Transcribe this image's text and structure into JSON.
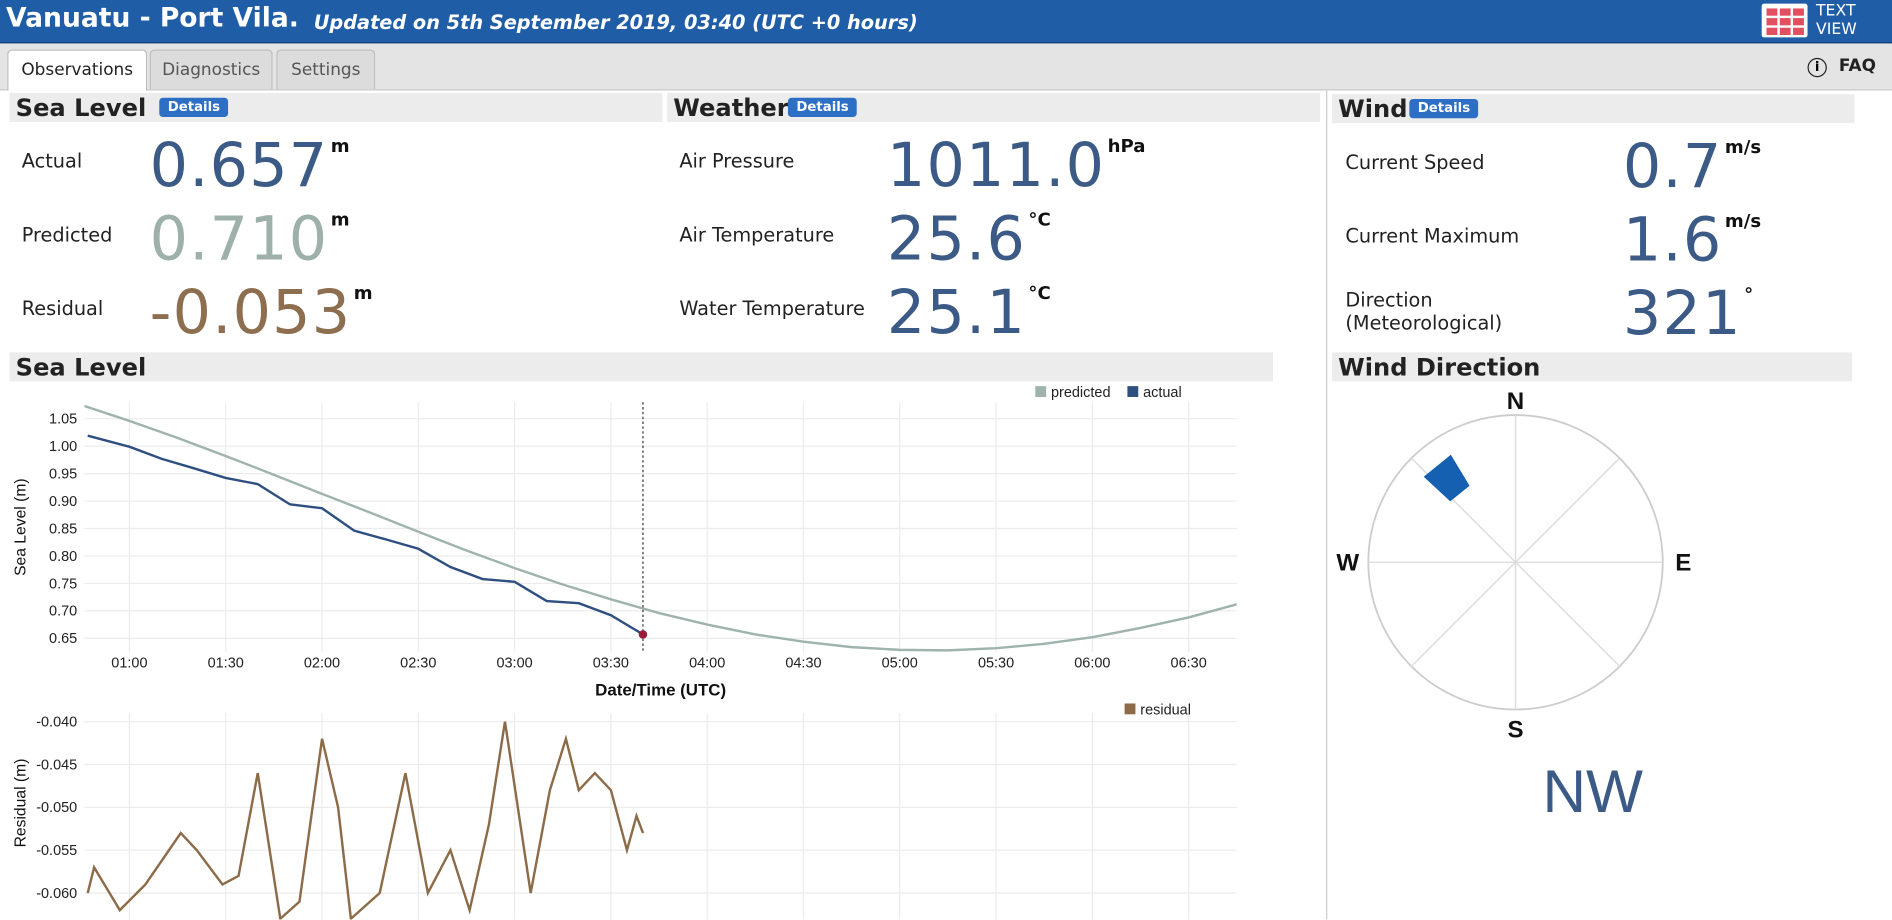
{
  "header": {
    "title": "Vanuatu - Port Vila.",
    "subtitle": "Updated on 5th September 2019, 03:40 (UTC +0 hours)",
    "text_view": "TEXT VIEW"
  },
  "tabs": [
    "Observations",
    "Diagnostics",
    "Settings"
  ],
  "faq": "FAQ",
  "panels": [
    {
      "title": "Sea Level",
      "details": "Details",
      "rows": [
        {
          "label": "Actual",
          "value": "0.657",
          "unit": "m",
          "color": "#3b5a86"
        },
        {
          "label": "Predicted",
          "value": "0.710",
          "unit": "m",
          "color": "#9db0aa"
        },
        {
          "label": "Residual",
          "value": "-0.053",
          "unit": "m",
          "color": "#8d6e4e"
        }
      ]
    },
    {
      "title": "Weather",
      "details": "Details",
      "rows": [
        {
          "label": "Air Pressure",
          "value": "1011.0",
          "unit": "hPa"
        },
        {
          "label": "Air Temperature",
          "value": "25.6",
          "unit": "°C"
        },
        {
          "label": "Water Temperature",
          "value": "25.1",
          "unit": "°C"
        }
      ]
    },
    {
      "title": "Wind",
      "details": "Details",
      "rows": [
        {
          "label": "Current Speed",
          "value": "0.7",
          "unit": "m/s"
        },
        {
          "label": "Current Maximum",
          "value": "1.6",
          "unit": "m/s"
        },
        {
          "label": "Direction (Meteorological)",
          "value": 321,
          "unit": "°"
        }
      ]
    }
  ],
  "sea_level_title": "Sea Level",
  "wind_direction": {
    "title": "Wind Direction",
    "labels": [
      "N",
      "E",
      "S",
      "W"
    ],
    "cardinal": "NW",
    "color": "#1560b0"
  },
  "chart_data": [
    {
      "type": "line",
      "y_label": "Sea Level (m)",
      "x_label": "Date/Time (UTC)",
      "xlim": [
        "00:46",
        "06:45"
      ],
      "ylim": [
        0.625,
        1.08
      ],
      "xticks": [
        "01:00",
        "01:30",
        "02:00",
        "02:30",
        "03:00",
        "03:30",
        "04:00",
        "04:30",
        "05:00",
        "05:30",
        "06:00",
        "06:30"
      ],
      "yticks": [
        0.65,
        {
          "value": 0.7,
          "label": "0.70"
        },
        0.75,
        {
          "value": 0.8,
          "label": "0.80"
        },
        0.85,
        {
          "value": 0.9,
          "label": "0.90"
        },
        0.95,
        {
          "value": 1,
          "label": "1.00"
        },
        1.05
      ],
      "grid": true,
      "end_marker": "#9b1b3b",
      "series": [
        {
          "name": "predicted",
          "color": "#9fb3ad",
          "x": [
            "00:45",
            "01:00",
            "01:15",
            "01:30",
            "01:45",
            "02:00",
            "02:15",
            "02:30",
            "02:45",
            "03:00",
            "03:15",
            "03:30",
            "03:45",
            "04:00",
            "04:15",
            "04:30",
            "04:45",
            "05:00",
            "05:15",
            "05:30",
            "05:45",
            "06:00",
            "06:15",
            "06:30",
            "06:45"
          ],
          "values": [
            1.075,
            1.046,
            1.015,
            0.982,
            0.948,
            0.913,
            0.879,
            0.844,
            0.81,
            0.778,
            0.748,
            0.721,
            0.696,
            0.675,
            0.657,
            0.644,
            0.634,
            0.629,
            0.628,
            0.632,
            0.64,
            0.652,
            0.669,
            0.688,
            0.712
          ]
        },
        {
          "name": "actual",
          "color": "#2f4f80",
          "x": [
            "00:47",
            "01:00",
            "01:10",
            "01:20",
            "01:30",
            "01:40",
            "01:50",
            "02:00",
            "02:10",
            "02:20",
            "02:30",
            "02:40",
            "02:50",
            "03:00",
            "03:10",
            "03:20",
            "03:30",
            "03:40"
          ],
          "values": [
            1.019,
            0.999,
            0.977,
            0.96,
            0.942,
            0.931,
            0.894,
            0.887,
            0.846,
            0.83,
            0.813,
            0.78,
            0.758,
            0.753,
            0.718,
            0.714,
            0.692,
            0.657
          ]
        }
      ]
    },
    {
      "type": "line",
      "y_label": "Residual (m)",
      "xlim": [
        "00:46",
        "06:45"
      ],
      "ylim": [
        -0.064,
        -0.039
      ],
      "yticks": [
        {
          "value": -0.04,
          "label": "-0.040"
        },
        -0.045,
        {
          "value": -0.05,
          "label": "-0.050"
        },
        -0.055,
        {
          "value": -0.06,
          "label": "-0.060"
        }
      ],
      "grid": true,
      "series": [
        {
          "name": "residual",
          "color": "#8c6b48",
          "x": [
            "00:47",
            "00:49",
            "00:57",
            "01:05",
            "01:16",
            "01:21",
            "01:29",
            "01:34",
            "01:40",
            "01:47",
            "01:53",
            "02:00",
            "02:05",
            "02:09",
            "02:18",
            "02:26",
            "02:33",
            "02:40",
            "02:46",
            "02:52",
            "02:57",
            "03:05",
            "03:11",
            "03:16",
            "03:20",
            "03:25",
            "03:30",
            "03:35",
            "03:38",
            "03:40"
          ],
          "values": [
            -0.06,
            -0.057,
            -0.062,
            -0.059,
            -0.053,
            -0.055,
            -0.059,
            -0.058,
            -0.046,
            -0.063,
            -0.061,
            -0.042,
            -0.05,
            -0.063,
            -0.06,
            -0.046,
            -0.06,
            -0.055,
            -0.062,
            -0.052,
            -0.04,
            -0.06,
            -0.048,
            -0.042,
            -0.048,
            -0.046,
            -0.048,
            -0.055,
            -0.051,
            -0.053
          ]
        }
      ]
    }
  ]
}
